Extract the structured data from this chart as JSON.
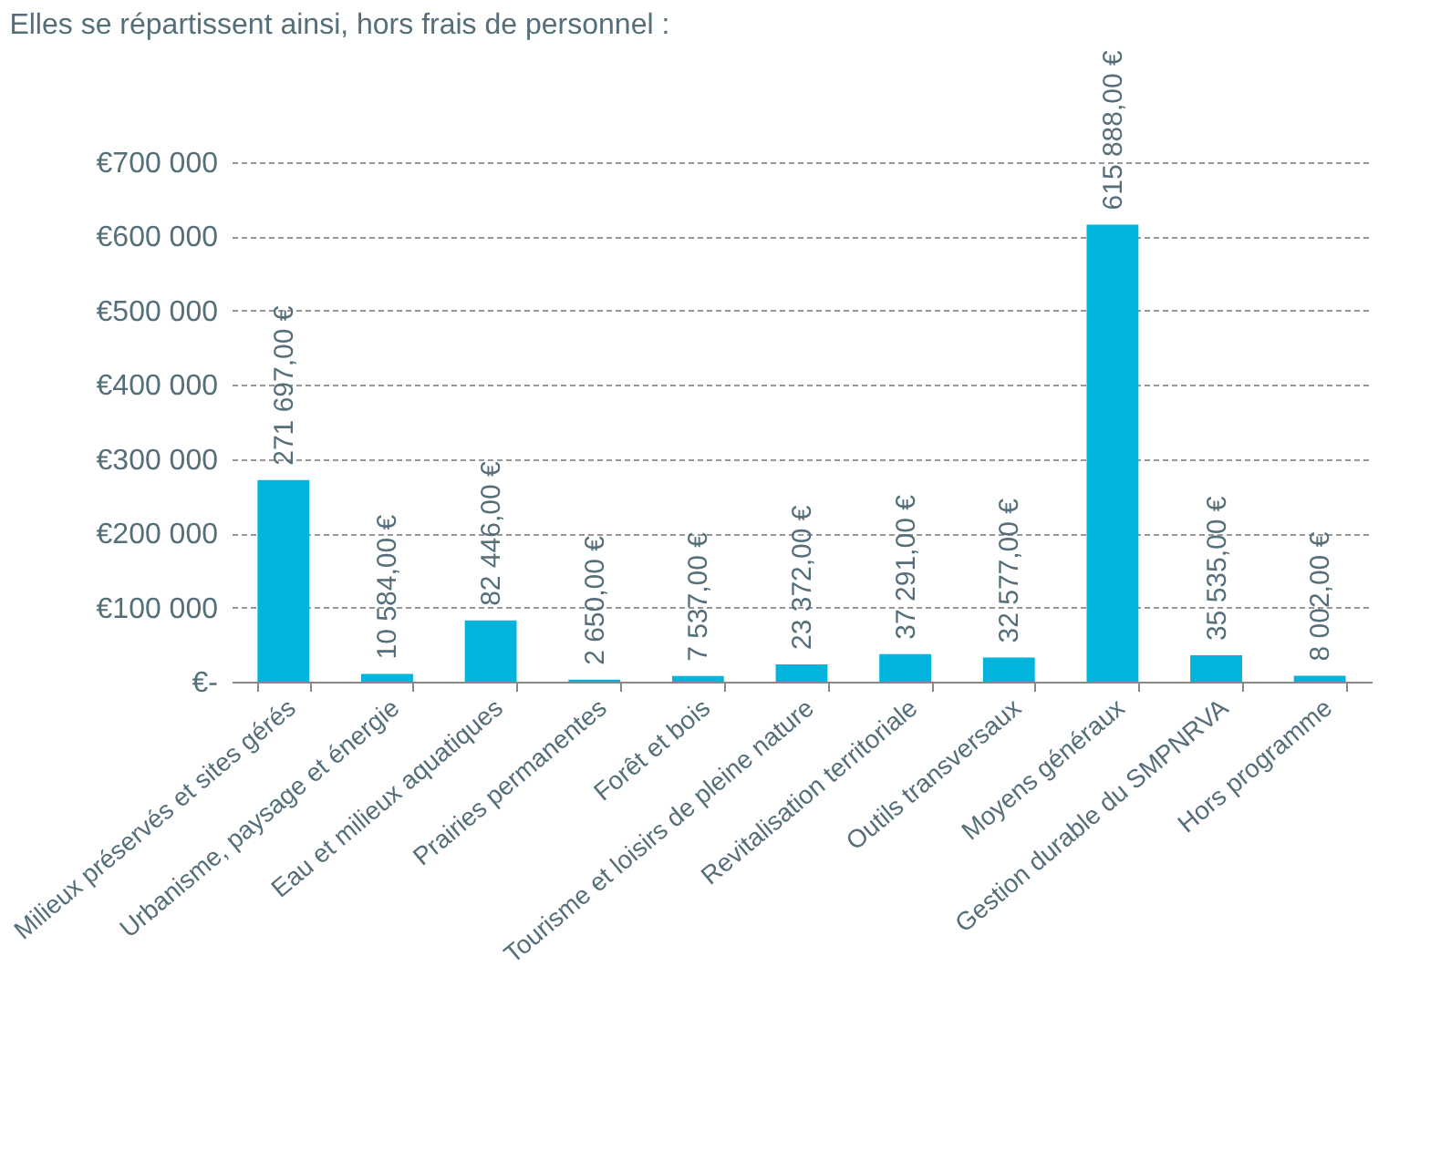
{
  "chart_data": {
    "type": "bar",
    "title": "Elles se répartissent ainsi, hors frais de personnel :",
    "categories": [
      "Milieux préservés et sites gérés",
      "Urbanisme, paysage et énergie",
      "Eau et milieux aquatiques",
      "Prairies permanentes",
      "Forêt et bois",
      "Tourisme et loisirs de pleine nature",
      "Revitalisation territoriale",
      "Outils transversaux",
      "Moyens généraux",
      "Gestion durable du SMPNRVA",
      "Hors programme"
    ],
    "values": [
      271697,
      10584,
      82446,
      2650,
      7537,
      23372,
      37291,
      32577,
      615888,
      35535,
      8002
    ],
    "value_labels": [
      "271 697,00 €",
      "10 584,00 €",
      "82 446,00 €",
      "2 650,00 €",
      "7 537,00 €",
      "23 372,00 €",
      "37 291,00 €",
      "32 577,00 €",
      "615 888,00 €",
      "35 535,00 €",
      "8 002,00 €"
    ],
    "color": "#00b4dc",
    "ylim": [
      0,
      700000
    ],
    "yticks": [
      {
        "value": 0,
        "label": "€-"
      },
      {
        "value": 100000,
        "label": "€100 000"
      },
      {
        "value": 200000,
        "label": "€200 000"
      },
      {
        "value": 300000,
        "label": "€300 000"
      },
      {
        "value": 400000,
        "label": "€400 000"
      },
      {
        "value": 500000,
        "label": "€500 000"
      },
      {
        "value": 600000,
        "label": "€600 000"
      },
      {
        "value": 700000,
        "label": "€700 000"
      }
    ],
    "grid": "y"
  }
}
